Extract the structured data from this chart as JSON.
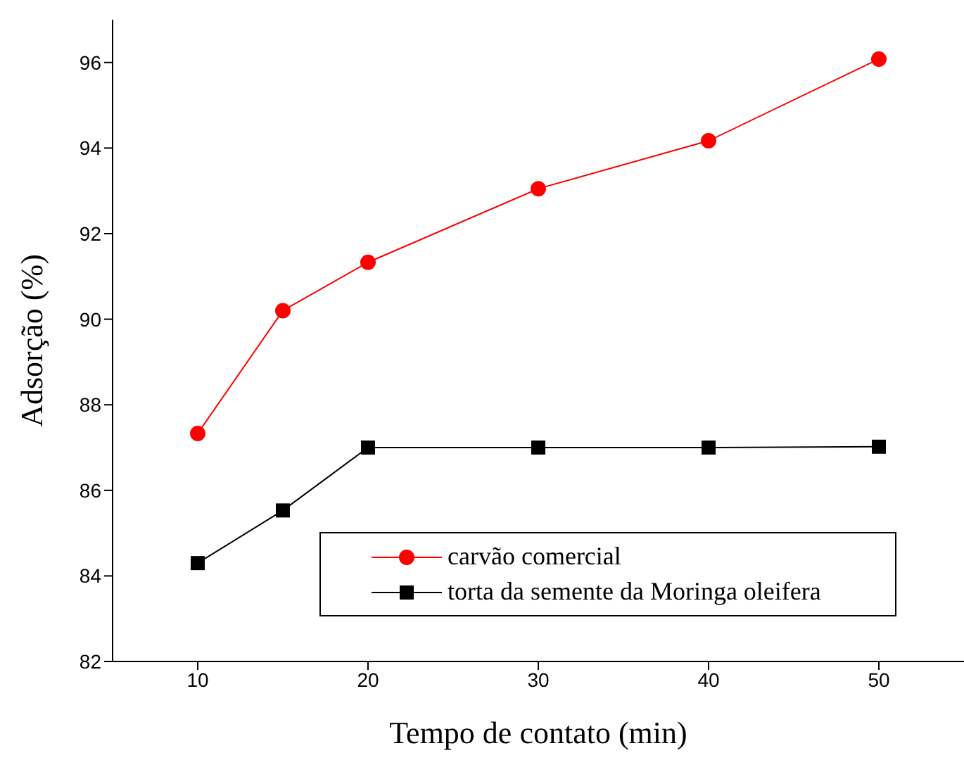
{
  "chart_data": {
    "type": "line",
    "xlabel": "Tempo de contato (min)",
    "ylabel": "Adsorção (%)",
    "x": [
      10,
      15,
      20,
      30,
      40,
      50
    ],
    "series": [
      {
        "name": "carvão comercial",
        "color": "#ff0000",
        "marker": "circle",
        "values": [
          87.33,
          90.2,
          91.33,
          93.05,
          94.17,
          96.08
        ]
      },
      {
        "name": "torta da semente da Moringa oleifera",
        "color": "#000000",
        "marker": "square",
        "values": [
          84.3,
          85.53,
          87.0,
          87.0,
          87.0,
          87.02
        ]
      }
    ],
    "xlim": [
      5,
      55
    ],
    "xticks": [
      10,
      20,
      30,
      40,
      50
    ],
    "ylim": [
      82,
      97
    ],
    "yticks": [
      82,
      84,
      86,
      88,
      90,
      92,
      94,
      96
    ],
    "grid": false,
    "legend": "bottom right",
    "line_style": "solid"
  }
}
